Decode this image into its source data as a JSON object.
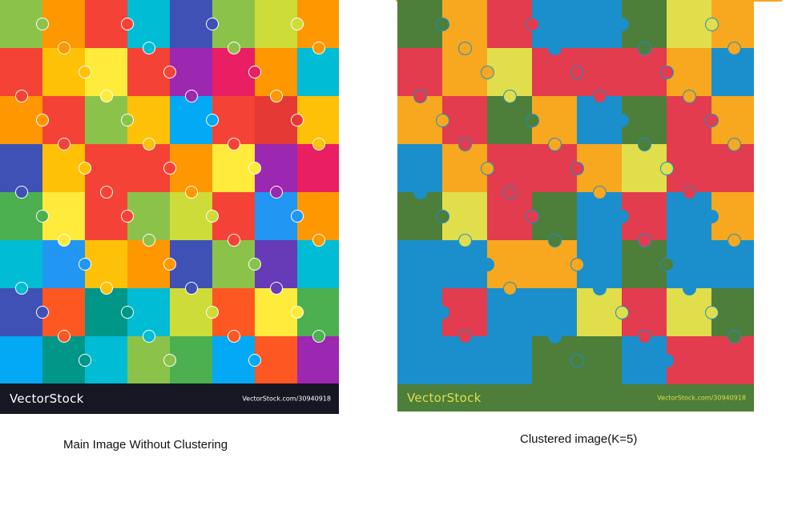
{
  "original_image": {
    "brand": "VectorStock",
    "credit": "VectorStock.com/30940918",
    "colors": {
      "footer_bg": "#161723",
      "footer_text": "#ffffff",
      "knob_outline": "#ffffff"
    },
    "rows": [
      [
        "#8BC34A",
        "#FF9800",
        "#F44336",
        "#00BCD4",
        "#3F51B5",
        "#8BC34A",
        "#CDDC39",
        "#FF9800"
      ],
      [
        "#F44336",
        "#FFC107",
        "#FFEB3B",
        "#F44336",
        "#9C27B0",
        "#E91E63",
        "#FF9800",
        "#00BCD4"
      ],
      [
        "#FF9800",
        "#F44336",
        "#8BC34A",
        "#FFC107",
        "#03A9F4",
        "#F44336",
        "#E53935",
        "#FFC107"
      ],
      [
        "#3F51B5",
        "#FFC107",
        "#F44336",
        "#F44336",
        "#FF9800",
        "#FFEB3B",
        "#9C27B0",
        "#E91E63"
      ],
      [
        "#4CAF50",
        "#FFEB3B",
        "#F44336",
        "#8BC34A",
        "#CDDC39",
        "#F44336",
        "#2196F3",
        "#FF9800"
      ],
      [
        "#00BCD4",
        "#2196F3",
        "#FFC107",
        "#FF9800",
        "#3F51B5",
        "#8BC34A",
        "#673AB7",
        "#00BCD4"
      ],
      [
        "#3F51B5",
        "#FF5722",
        "#009688",
        "#00BCD4",
        "#CDDC39",
        "#FF5722",
        "#FFEB3B",
        "#4CAF50"
      ],
      [
        "#03A9F4",
        "#009688",
        "#00BCD4",
        "#8BC34A",
        "#4CAF50",
        "#03A9F4",
        "#FF5722",
        "#9C27B0"
      ]
    ]
  },
  "clustered_image": {
    "brand": "VectorStock",
    "credit": "VectorStock.com/30940918",
    "palette": {
      "blue": "#1B8FCB",
      "red": "#E23C4E",
      "yellow": "#E1DE4B",
      "orange": "#F8A81F",
      "green": "#4D7E3A"
    },
    "colors": {
      "footer_bg": "#4D7E3A",
      "footer_text": "#E1DE4B",
      "knob_outline": "#1B8FCB",
      "top_line": "#F8A81F"
    },
    "rows": [
      [
        "green",
        "orange",
        "red",
        "blue",
        "blue",
        "green",
        "yellow",
        "orange"
      ],
      [
        "red",
        "orange",
        "yellow",
        "red",
        "red",
        "red",
        "orange",
        "blue"
      ],
      [
        "orange",
        "red",
        "green",
        "orange",
        "blue",
        "green",
        "red",
        "orange"
      ],
      [
        "blue",
        "orange",
        "red",
        "red",
        "orange",
        "yellow",
        "red",
        "red"
      ],
      [
        "green",
        "yellow",
        "red",
        "green",
        "blue",
        "red",
        "blue",
        "orange"
      ],
      [
        "blue",
        "blue",
        "orange",
        "orange",
        "blue",
        "green",
        "blue",
        "blue"
      ],
      [
        "blue",
        "red",
        "blue",
        "blue",
        "yellow",
        "red",
        "yellow",
        "green"
      ],
      [
        "blue",
        "blue",
        "blue",
        "green",
        "green",
        "blue",
        "red",
        "red"
      ]
    ]
  },
  "captions": {
    "original": "Main Image Without Clustering",
    "clustered": "Clustered image(K=5)"
  }
}
